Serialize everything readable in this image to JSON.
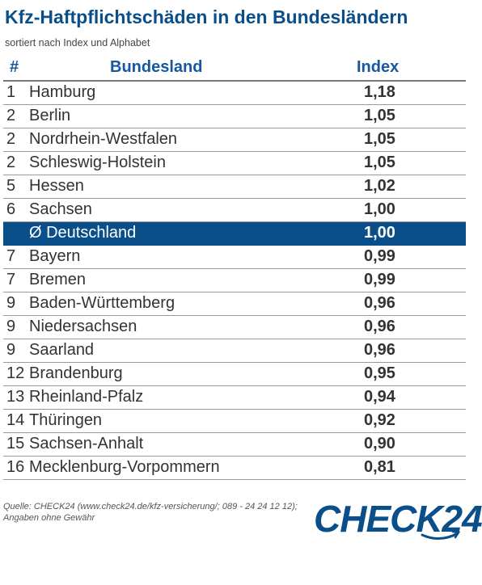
{
  "title": "Kfz-Haftpflichtschäden in den Bundesländern",
  "subtitle": "sortiert nach Index und Alphabet",
  "colors": {
    "brand_blue": "#0b4f8a",
    "header_blue": "#1558a0"
  },
  "chart_data": {
    "type": "table",
    "columns": [
      "#",
      "Bundesland",
      "Index"
    ],
    "rows": [
      {
        "rank": "1",
        "land": "Hamburg",
        "index": "1,18"
      },
      {
        "rank": "2",
        "land": "Berlin",
        "index": "1,05"
      },
      {
        "rank": "2",
        "land": "Nordrhein-Westfalen",
        "index": "1,05"
      },
      {
        "rank": "2",
        "land": "Schleswig-Holstein",
        "index": "1,05"
      },
      {
        "rank": "5",
        "land": "Hessen",
        "index": "1,02"
      },
      {
        "rank": "6",
        "land": "Sachsen",
        "index": "1,00"
      },
      {
        "rank": "",
        "land": "Ø Deutschland",
        "index": "1,00",
        "highlight": true
      },
      {
        "rank": "7",
        "land": "Bayern",
        "index": "0,99"
      },
      {
        "rank": "7",
        "land": "Bremen",
        "index": "0,99"
      },
      {
        "rank": "9",
        "land": "Baden-Württemberg",
        "index": "0,96"
      },
      {
        "rank": "9",
        "land": "Niedersachsen",
        "index": "0,96"
      },
      {
        "rank": "9",
        "land": "Saarland",
        "index": "0,96"
      },
      {
        "rank": "12",
        "land": "Brandenburg",
        "index": "0,95"
      },
      {
        "rank": "13",
        "land": "Rheinland-Pfalz",
        "index": "0,94"
      },
      {
        "rank": "14",
        "land": "Thüringen",
        "index": "0,92"
      },
      {
        "rank": "15",
        "land": "Sachsen-Anhalt",
        "index": "0,90"
      },
      {
        "rank": "16",
        "land": "Mecklenburg-Vorpommern",
        "index": "0,81"
      }
    ]
  },
  "source": "Quelle: CHECK24 (www.check24.de/kfz-versicherung/; 089 - 24 24 12 12); Angaben ohne Gewähr",
  "logo": "CHECK24"
}
